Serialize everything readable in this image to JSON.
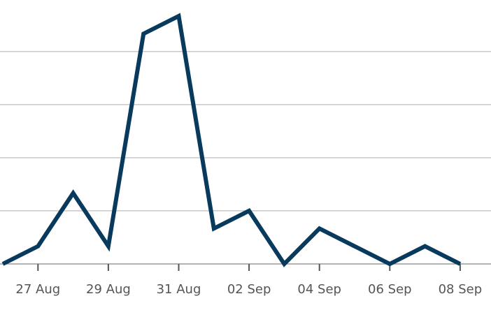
{
  "chart_data": {
    "type": "line",
    "title": "",
    "xlabel": "",
    "ylabel": "",
    "x": [
      "26 Aug",
      "27 Aug",
      "28 Aug",
      "29 Aug",
      "30 Aug",
      "31 Aug",
      "01 Sep",
      "02 Sep",
      "03 Sep",
      "04 Sep",
      "05 Sep",
      "06 Sep",
      "07 Sep",
      "08 Sep"
    ],
    "series": [
      {
        "values": [
          0,
          1,
          4,
          1,
          13,
          14,
          2,
          3,
          0,
          2,
          1,
          0,
          1,
          0
        ]
      }
    ],
    "ylim": [
      0,
      14
    ],
    "y_grid_values": [
      3,
      6,
      9,
      12
    ],
    "x_tick_labels": [
      "27 Aug",
      "29 Aug",
      "31 Aug",
      "02 Sep",
      "04 Sep",
      "06 Sep",
      "08 Sep"
    ],
    "y_tick_labels_visible": false,
    "grid": true,
    "legend": "none",
    "colors": {
      "line": "#083a5e",
      "grid": "#c8c8c8",
      "text": "#555555"
    }
  }
}
